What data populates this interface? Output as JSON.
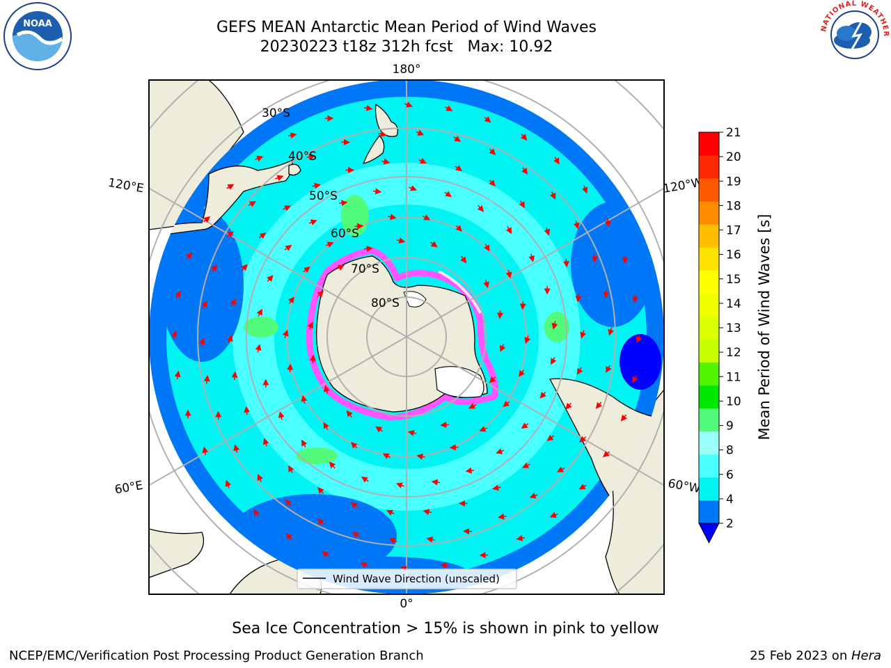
{
  "header": {
    "title": "GEFS MEAN Antarctic Mean Period of Wind Waves",
    "subtitle": "20230223 t18z 312h fcst   Max: 10.92"
  },
  "logos": {
    "left": "NOAA",
    "right": "NATIONAL WEATHER SERVICE"
  },
  "map": {
    "longitude_labels": {
      "top": "180°",
      "bottom": "0°",
      "upper_left": "120°E",
      "upper_right": "120°W",
      "lower_left": "60°E",
      "lower_right": "60°W"
    },
    "latitude_labels": [
      "30°S",
      "40°S",
      "50°S",
      "60°S",
      "70°S",
      "80°S"
    ],
    "legend_label": "Wind Wave Direction (unscaled)",
    "colors": {
      "land": "#eeecdb",
      "ocean_light": "#00f4f4",
      "ocean_mid": "#49ffff",
      "ocean_dark": "#0077f7",
      "arrow": "#ff0000",
      "ice": "#ff55ff",
      "grid": "#b0b0b0"
    }
  },
  "colorbar": {
    "label": "Mean Period of Wind Waves [s]",
    "ticks": [
      "2",
      "4",
      "6",
      "8",
      "9",
      "10",
      "11",
      "12",
      "13",
      "14",
      "15",
      "16",
      "17",
      "18",
      "19",
      "20",
      "21"
    ],
    "colors": [
      "#0077f7",
      "#00f4f4",
      "#49ffff",
      "#9bfff9",
      "#53fb7a",
      "#00e800",
      "#51f500",
      "#c8ff00",
      "#d9ff00",
      "#f0ff00",
      "#ffff00",
      "#ffe300",
      "#ffbe00",
      "#ff8b00",
      "#ff5a00",
      "#ff2800",
      "#ff0000"
    ],
    "under_color": "#0000ff"
  },
  "footer": {
    "note": "Sea Ice Concentration > 15% is shown in pink to yellow",
    "left": "NCEP/EMC/Verification Post Processing Product Generation Branch",
    "right_prefix": "25 Feb 2023 on ",
    "right_host": "Hera"
  }
}
